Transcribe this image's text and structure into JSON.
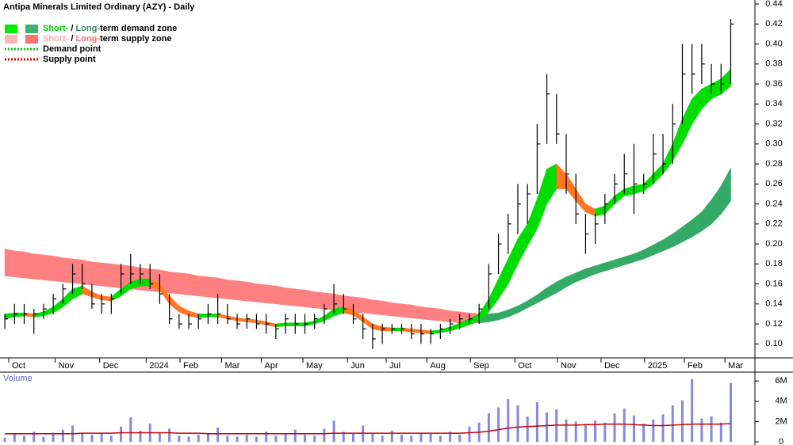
{
  "chart_data": {
    "type": "ohlc-zones",
    "title": "Antipa Minerals Limited Ordinary (AZY) - Daily",
    "x": [
      0,
      1,
      2,
      3,
      4,
      5,
      6,
      7,
      8,
      9,
      10,
      11,
      12,
      13,
      14,
      15,
      16,
      17,
      18,
      19,
      20,
      21,
      22,
      23,
      24,
      25,
      26,
      27,
      28,
      29,
      30,
      31,
      32,
      33,
      34,
      35,
      36,
      37,
      38,
      39,
      40,
      41,
      42,
      43,
      44,
      45,
      46,
      47,
      48,
      49,
      50,
      51,
      52,
      53,
      54,
      55,
      56,
      57,
      58,
      59,
      60,
      61,
      62,
      63,
      64,
      65,
      66,
      67,
      68,
      69,
      70,
      71,
      72,
      73,
      74,
      75
    ],
    "xlim": [
      -0.5,
      77.5
    ],
    "xticks": [
      {
        "value": 0.4,
        "label": "Oct"
      },
      {
        "value": 5.2,
        "label": "Nov"
      },
      {
        "value": 9.8,
        "label": "Dec"
      },
      {
        "value": 14.6,
        "label": "2024"
      },
      {
        "value": 18.1,
        "label": "Feb"
      },
      {
        "value": 22.4,
        "label": "Mar"
      },
      {
        "value": 26.5,
        "label": "Apr"
      },
      {
        "value": 30.8,
        "label": "May"
      },
      {
        "value": 35.4,
        "label": "Jun"
      },
      {
        "value": 39.4,
        "label": "Jul"
      },
      {
        "value": 43.6,
        "label": "Aug"
      },
      {
        "value": 48.1,
        "label": "Sep"
      },
      {
        "value": 52.7,
        "label": "Oct"
      },
      {
        "value": 57.1,
        "label": "Nov"
      },
      {
        "value": 61.6,
        "label": "Dec"
      },
      {
        "value": 66.1,
        "label": "2025"
      },
      {
        "value": 70.2,
        "label": "Feb"
      },
      {
        "value": 74.4,
        "label": "Mar"
      }
    ],
    "ylim": [
      0.086,
      0.444
    ],
    "yticks": [
      {
        "value": 0.1,
        "label": "0.10"
      },
      0.12,
      0.14,
      0.16,
      0.18,
      {
        "value": 0.2,
        "label": "0.20"
      },
      0.22,
      0.24,
      0.26,
      0.28,
      {
        "value": 0.3,
        "label": "0.30"
      },
      0.32,
      0.34,
      0.36,
      0.38,
      {
        "value": 0.4,
        "label": "0.40"
      },
      0.42,
      0.44
    ],
    "high": [
      0.13,
      0.14,
      0.14,
      0.135,
      0.14,
      0.15,
      0.16,
      0.18,
      0.18,
      0.16,
      0.15,
      0.15,
      0.18,
      0.19,
      0.18,
      0.18,
      0.17,
      0.15,
      0.13,
      0.13,
      0.13,
      0.14,
      0.15,
      0.14,
      0.13,
      0.13,
      0.13,
      0.13,
      0.12,
      0.13,
      0.13,
      0.13,
      0.13,
      0.14,
      0.16,
      0.15,
      0.14,
      0.13,
      0.12,
      0.12,
      0.12,
      0.12,
      0.12,
      0.12,
      0.115,
      0.12,
      0.125,
      0.13,
      0.13,
      0.14,
      0.18,
      0.21,
      0.23,
      0.26,
      0.26,
      0.32,
      0.37,
      0.35,
      0.31,
      0.27,
      0.23,
      0.23,
      0.25,
      0.27,
      0.29,
      0.3,
      0.27,
      0.31,
      0.31,
      0.34,
      0.4,
      0.4,
      0.4,
      0.38,
      0.38,
      0.425
    ],
    "low": [
      0.115,
      0.12,
      0.12,
      0.11,
      0.125,
      0.13,
      0.14,
      0.15,
      0.155,
      0.135,
      0.13,
      0.13,
      0.15,
      0.16,
      0.16,
      0.155,
      0.14,
      0.12,
      0.115,
      0.115,
      0.115,
      0.12,
      0.12,
      0.12,
      0.115,
      0.115,
      0.115,
      0.11,
      0.105,
      0.11,
      0.11,
      0.11,
      0.115,
      0.12,
      0.13,
      0.13,
      0.12,
      0.105,
      0.095,
      0.1,
      0.11,
      0.11,
      0.105,
      0.1,
      0.1,
      0.105,
      0.11,
      0.115,
      0.12,
      0.12,
      0.135,
      0.17,
      0.19,
      0.21,
      0.22,
      0.25,
      0.3,
      0.3,
      0.25,
      0.22,
      0.19,
      0.2,
      0.22,
      0.24,
      0.25,
      0.23,
      0.25,
      0.26,
      0.27,
      0.28,
      0.32,
      0.35,
      0.36,
      0.35,
      0.35,
      0.36
    ],
    "close": [
      0.125,
      0.13,
      0.13,
      0.13,
      0.135,
      0.145,
      0.155,
      0.17,
      0.16,
      0.14,
      0.14,
      0.145,
      0.17,
      0.17,
      0.17,
      0.16,
      0.15,
      0.125,
      0.12,
      0.12,
      0.125,
      0.13,
      0.13,
      0.125,
      0.12,
      0.125,
      0.12,
      0.12,
      0.115,
      0.125,
      0.12,
      0.12,
      0.125,
      0.135,
      0.14,
      0.135,
      0.125,
      0.115,
      0.105,
      0.115,
      0.115,
      0.115,
      0.11,
      0.11,
      0.11,
      0.115,
      0.12,
      0.125,
      0.125,
      0.135,
      0.17,
      0.2,
      0.22,
      0.24,
      0.25,
      0.3,
      0.35,
      0.31,
      0.27,
      0.23,
      0.21,
      0.22,
      0.24,
      0.26,
      0.27,
      0.26,
      0.26,
      0.29,
      0.28,
      0.32,
      0.37,
      0.37,
      0.38,
      0.36,
      0.36,
      0.42
    ],
    "price_color": "#000000",
    "short_zone": {
      "upper": [
        0.13,
        0.131,
        0.131,
        0.13,
        0.132,
        0.137,
        0.145,
        0.155,
        0.158,
        0.152,
        0.148,
        0.147,
        0.155,
        0.162,
        0.165,
        0.165,
        0.16,
        0.148,
        0.138,
        0.133,
        0.13,
        0.13,
        0.13,
        0.128,
        0.126,
        0.125,
        0.124,
        0.122,
        0.12,
        0.121,
        0.121,
        0.121,
        0.123,
        0.128,
        0.135,
        0.137,
        0.134,
        0.127,
        0.12,
        0.117,
        0.116,
        0.116,
        0.115,
        0.114,
        0.113,
        0.114,
        0.117,
        0.121,
        0.125,
        0.13,
        0.145,
        0.165,
        0.185,
        0.205,
        0.22,
        0.245,
        0.275,
        0.28,
        0.27,
        0.255,
        0.24,
        0.235,
        0.238,
        0.248,
        0.255,
        0.258,
        0.26,
        0.27,
        0.28,
        0.3,
        0.325,
        0.345,
        0.355,
        0.36,
        0.365,
        0.375
      ],
      "lower": [
        0.125,
        0.127,
        0.128,
        0.127,
        0.128,
        0.131,
        0.137,
        0.145,
        0.15,
        0.147,
        0.144,
        0.143,
        0.148,
        0.155,
        0.158,
        0.158,
        0.154,
        0.14,
        0.132,
        0.128,
        0.126,
        0.127,
        0.127,
        0.125,
        0.123,
        0.122,
        0.121,
        0.119,
        0.117,
        0.118,
        0.118,
        0.118,
        0.12,
        0.123,
        0.128,
        0.131,
        0.129,
        0.122,
        0.115,
        0.113,
        0.113,
        0.113,
        0.112,
        0.111,
        0.11,
        0.111,
        0.113,
        0.116,
        0.119,
        0.123,
        0.132,
        0.145,
        0.16,
        0.18,
        0.198,
        0.215,
        0.24,
        0.255,
        0.255,
        0.243,
        0.232,
        0.228,
        0.23,
        0.24,
        0.248,
        0.25,
        0.253,
        0.26,
        0.27,
        0.283,
        0.3,
        0.32,
        0.335,
        0.345,
        0.35,
        0.358
      ]
    },
    "long_zone": {
      "upper": [
        0.195,
        0.193,
        0.192,
        0.19,
        0.189,
        0.188,
        0.186,
        0.185,
        0.184,
        0.182,
        0.181,
        0.18,
        0.179,
        0.178,
        0.176,
        0.175,
        0.174,
        0.172,
        0.171,
        0.17,
        0.168,
        0.167,
        0.166,
        0.164,
        0.163,
        0.162,
        0.16,
        0.159,
        0.158,
        0.156,
        0.155,
        0.154,
        0.152,
        0.151,
        0.15,
        0.148,
        0.147,
        0.146,
        0.144,
        0.143,
        0.141,
        0.14,
        0.139,
        0.137,
        0.136,
        0.135,
        0.133,
        0.132,
        0.131,
        0.13,
        0.13,
        0.131,
        0.134,
        0.138,
        0.143,
        0.149,
        0.156,
        0.162,
        0.167,
        0.171,
        0.175,
        0.178,
        0.181,
        0.184,
        0.187,
        0.19,
        0.194,
        0.199,
        0.204,
        0.21,
        0.217,
        0.224,
        0.232,
        0.244,
        0.258,
        0.276
      ],
      "lower": [
        0.168,
        0.167,
        0.166,
        0.165,
        0.164,
        0.163,
        0.162,
        0.161,
        0.16,
        0.159,
        0.158,
        0.157,
        0.156,
        0.155,
        0.154,
        0.153,
        0.152,
        0.151,
        0.15,
        0.149,
        0.148,
        0.147,
        0.146,
        0.145,
        0.144,
        0.143,
        0.142,
        0.141,
        0.14,
        0.139,
        0.138,
        0.137,
        0.136,
        0.135,
        0.134,
        0.133,
        0.132,
        0.131,
        0.13,
        0.129,
        0.128,
        0.127,
        0.126,
        0.125,
        0.124,
        0.123,
        0.122,
        0.121,
        0.121,
        0.121,
        0.122,
        0.124,
        0.127,
        0.131,
        0.136,
        0.141,
        0.146,
        0.151,
        0.157,
        0.162,
        0.166,
        0.17,
        0.173,
        0.176,
        0.179,
        0.182,
        0.185,
        0.189,
        0.193,
        0.197,
        0.202,
        0.207,
        0.213,
        0.22,
        0.23,
        0.243
      ]
    },
    "zone_colors": {
      "short_demand": "#00dd00",
      "short_supply": "#ff7722",
      "long_demand": "#33aa66",
      "long_supply": "#ff8080"
    },
    "legend": [
      {
        "short": "Short-",
        "sep": "/",
        "long": "Long-",
        "rest": "term demand zone",
        "short_color": "#00ee00",
        "long_color": "#3cb371",
        "short_text_color": "#00cc00",
        "long_text_color": "#2e8b57"
      },
      {
        "short": "Short-",
        "sep": "/",
        "long": "Long-",
        "rest": "term supply zone",
        "short_color": "#ffb6b6",
        "long_color": "#ff7070",
        "short_text_color": "#ffaaaa",
        "long_text_color": "#ff7070"
      }
    ],
    "points": [
      {
        "label": "Demand point",
        "color": "#00cc00"
      },
      {
        "label": "Supply point",
        "color": "#dd0000"
      }
    ],
    "volume": {
      "title": "Volume",
      "values": [
        0.4,
        0.8,
        0.6,
        1.0,
        0.5,
        0.9,
        1.2,
        1.6,
        0.8,
        0.7,
        0.9,
        0.6,
        1.5,
        2.4,
        1.1,
        1.8,
        0.9,
        1.3,
        0.6,
        0.5,
        0.7,
        0.8,
        1.4,
        0.6,
        0.5,
        0.7,
        0.5,
        1.0,
        0.6,
        0.8,
        1.2,
        0.7,
        0.6,
        1.3,
        2.1,
        1.0,
        0.9,
        1.6,
        0.8,
        0.6,
        1.1,
        0.7,
        0.6,
        0.9,
        0.8,
        0.6,
        1.0,
        0.7,
        1.5,
        1.9,
        2.8,
        3.4,
        4.2,
        3.6,
        2.5,
        3.9,
        2.9,
        3.2,
        2.2,
        2.0,
        1.7,
        2.1,
        1.9,
        2.8,
        3.3,
        2.6,
        1.8,
        2.2,
        2.7,
        3.6,
        4.1,
        6.2,
        2.3,
        2.5,
        1.9,
        5.8
      ],
      "average": [
        0.8,
        0.8,
        0.8,
        0.8,
        0.8,
        0.8,
        0.8,
        0.8,
        0.85,
        0.85,
        0.85,
        0.85,
        0.9,
        0.9,
        0.9,
        0.9,
        0.9,
        0.9,
        0.85,
        0.85,
        0.85,
        0.8,
        0.8,
        0.8,
        0.8,
        0.8,
        0.8,
        0.8,
        0.8,
        0.8,
        0.8,
        0.8,
        0.8,
        0.8,
        0.85,
        0.85,
        0.85,
        0.85,
        0.85,
        0.85,
        0.85,
        0.85,
        0.85,
        0.85,
        0.85,
        0.85,
        0.85,
        0.85,
        0.9,
        0.95,
        1.05,
        1.2,
        1.35,
        1.45,
        1.5,
        1.55,
        1.6,
        1.65,
        1.65,
        1.65,
        1.7,
        1.7,
        1.75,
        1.75,
        1.75,
        1.7,
        1.65,
        1.6,
        1.6,
        1.65,
        1.7,
        1.75,
        1.75,
        1.75,
        1.75,
        1.8
      ],
      "color": "#8888dd",
      "average_color": "#cc0000",
      "ylim": [
        0,
        6.4
      ],
      "yticks": [
        0,
        {
          "value": 2,
          "label": "2M"
        },
        {
          "value": 4,
          "label": "4M"
        },
        {
          "value": 6,
          "label": "6M"
        }
      ]
    }
  }
}
